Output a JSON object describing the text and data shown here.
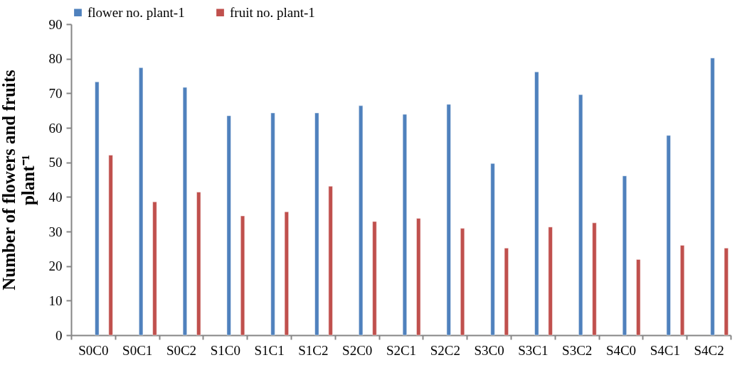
{
  "chart_data": {
    "type": "bar",
    "ylabel": "Number of flowers and fruits plant⁻¹",
    "categories": [
      "S0C0",
      "S0C1",
      "S0C2",
      "S1C0",
      "S1C1",
      "S1C2",
      "S2C0",
      "S2C1",
      "S2C2",
      "S3C0",
      "S3C1",
      "S3C2",
      "S4C0",
      "S4C1",
      "S4C2"
    ],
    "series": [
      {
        "name": "flower no. plant-1",
        "color": "#4f81bd",
        "values": [
          73.3,
          77.4,
          71.7,
          63.5,
          64.3,
          64.3,
          66.4,
          63.9,
          66.8,
          49.7,
          76.2,
          69.6,
          46.1,
          57.8,
          80.2
        ]
      },
      {
        "name": "fruit no. plant-1",
        "color": "#c0504d",
        "values": [
          52.1,
          38.6,
          41.4,
          34.5,
          35.7,
          43.1,
          32.9,
          33.8,
          30.9,
          25.2,
          31.3,
          32.5,
          21.9,
          26.0,
          25.2
        ]
      }
    ],
    "ylim": [
      0,
      90
    ],
    "yticks": [
      0,
      10,
      20,
      30,
      40,
      50,
      60,
      70,
      80,
      90
    ],
    "grid": false,
    "legend": "top"
  }
}
